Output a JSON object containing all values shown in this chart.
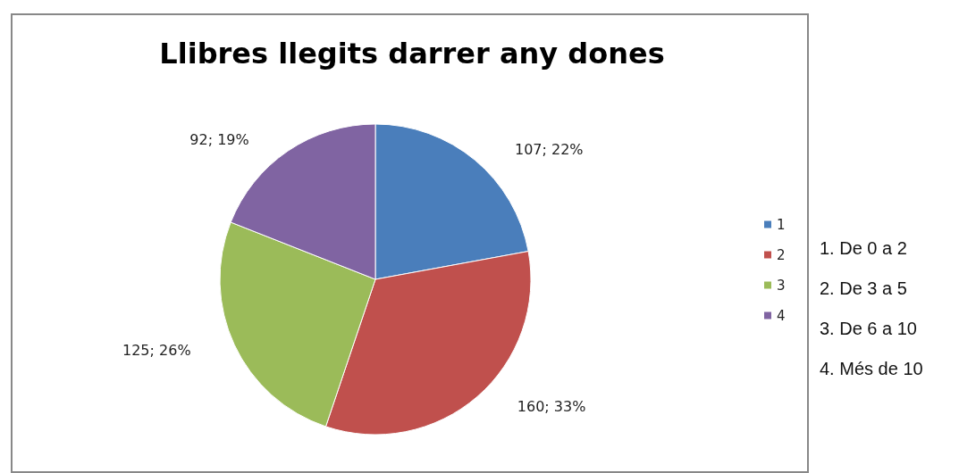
{
  "chart_data": {
    "type": "pie",
    "title": "Llibres llegits darrer any dones",
    "categories": [
      "1",
      "2",
      "3",
      "4"
    ],
    "values": [
      107,
      160,
      125,
      92
    ],
    "value_labels": [
      "107; 22%",
      "160; 33%",
      "125; 26%",
      "92; 19%"
    ],
    "colors": [
      "#4a7ebb",
      "#c0504d",
      "#9bbb59",
      "#8064a2"
    ],
    "legend": "right",
    "annotations": [
      "1. De 0 a 2",
      "2. De 3 a 5",
      "3. De 6 a 10",
      "4. Més de 10"
    ]
  }
}
